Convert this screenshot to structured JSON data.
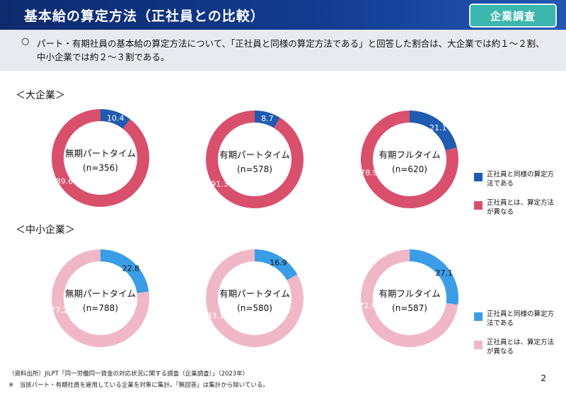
{
  "header": {
    "title": "基本給の算定方法（正社員との比較）",
    "badge": "企業調査"
  },
  "summary": {
    "bullet": "○",
    "text": "パート・有期社員の基本給の算定方法について、「正社員と同様の算定方法である」と回答した割合は、大企業では約１～２割、中小企業では約２～３割である。"
  },
  "sections": {
    "large": "＜大企業＞",
    "sme": "＜中小企業＞"
  },
  "colors": {
    "large_a": "#1f5bb0",
    "large_b": "#d9506c",
    "sme_a": "#3a9de6",
    "sme_b": "#f0b8c6"
  },
  "legend": {
    "large": [
      {
        "label": "正社員と同様の算定方法である"
      },
      {
        "label": "正社員とは、算定方法が異なる"
      }
    ],
    "sme": [
      {
        "label": "正社員と同様の算定方法である"
      },
      {
        "label": "正社員とは、算定方法が異なる"
      }
    ]
  },
  "chart_data": [
    {
      "type": "pie",
      "group": "大企業",
      "title": "無期パートタイム",
      "n": "(n=356)",
      "categories": [
        "正社員と同様の算定方法である",
        "正社員とは、算定方法が異なる"
      ],
      "values": [
        10.4,
        89.6
      ]
    },
    {
      "type": "pie",
      "group": "大企業",
      "title": "有期パートタイム",
      "n": "(n=578)",
      "categories": [
        "正社員と同様の算定方法である",
        "正社員とは、算定方法が異なる"
      ],
      "values": [
        8.7,
        91.3
      ]
    },
    {
      "type": "pie",
      "group": "大企業",
      "title": "有期フルタイム",
      "n": "(n=620)",
      "categories": [
        "正社員と同様の算定方法である",
        "正社員とは、算定方法が異なる"
      ],
      "values": [
        21.1,
        78.9
      ]
    },
    {
      "type": "pie",
      "group": "中小企業",
      "title": "無期パートタイム",
      "n": "(n=788)",
      "categories": [
        "正社員と同様の算定方法である",
        "正社員とは、算定方法が異なる"
      ],
      "values": [
        22.8,
        77.2
      ]
    },
    {
      "type": "pie",
      "group": "中小企業",
      "title": "有期パートタイム",
      "n": "(n=580)",
      "categories": [
        "正社員と同様の算定方法である",
        "正社員とは、算定方法が異なる"
      ],
      "values": [
        16.9,
        83.1
      ]
    },
    {
      "type": "pie",
      "group": "中小企業",
      "title": "有期フルタイム",
      "n": "(n=587)",
      "categories": [
        "正社員と同様の算定方法である",
        "正社員とは、算定方法が異なる"
      ],
      "values": [
        27.1,
        72.9
      ]
    }
  ],
  "footer": {
    "source": "（資料出所）JILPT「同一労働同一賃金の対応状況に関する調査（企業調査）」（2023年）",
    "note": "※　当該パート・有期社員を雇用している企業を対象に集計。「無回答」は集計から除いている。"
  },
  "page_number": "2"
}
